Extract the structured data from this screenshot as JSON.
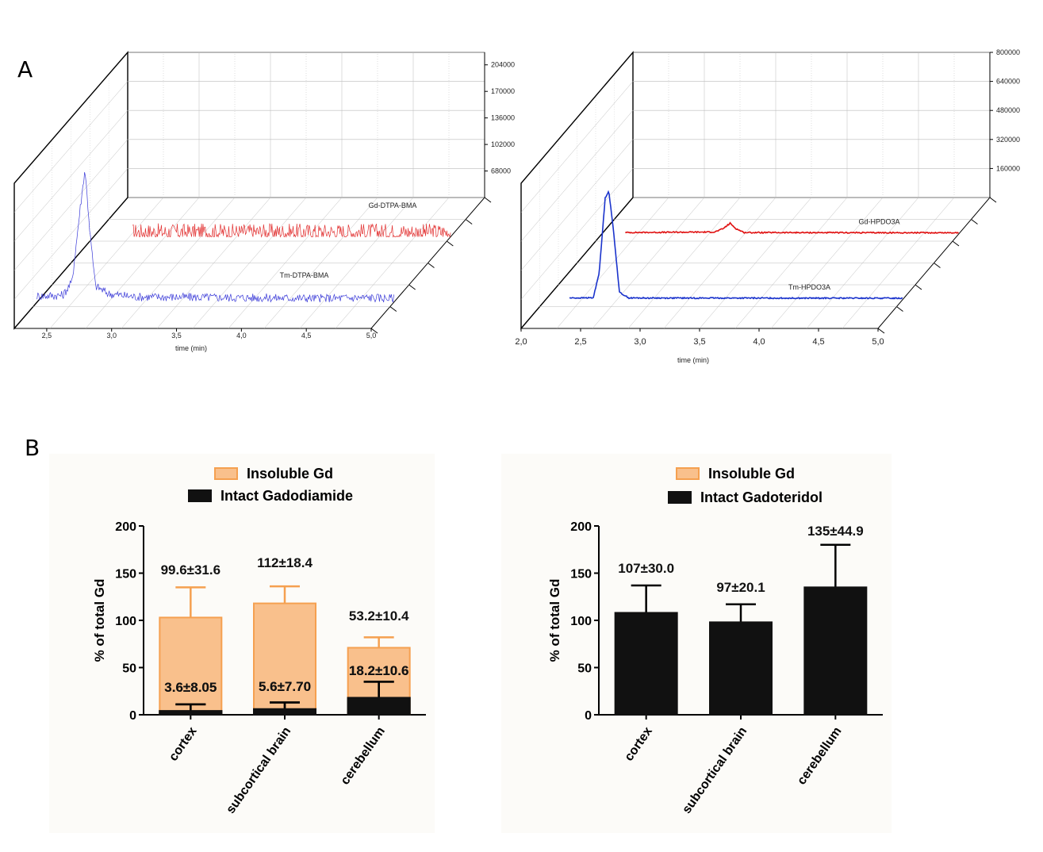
{
  "panels": {
    "a": "A",
    "b": "B"
  },
  "colors": {
    "gd_trace": "#e23030",
    "tm_trace_left": "#3a3ad8",
    "tm_trace_right": "#1a33cc",
    "gd_trace_right": "#e01010",
    "insoluble_fill": "#f9c08c",
    "insoluble_edge": "#f5a050",
    "intact_fill": "#111111",
    "grid": "#bbbbbb",
    "bar_bg": "#fcfbf8"
  },
  "chart_data": [
    {
      "type": "line",
      "panel": "A",
      "xlabel": "time (min)",
      "ylabel": "",
      "xlim": [
        2.25,
        5.0
      ],
      "x_ticks": [
        "2,5",
        "3,0",
        "3,5",
        "4,0",
        "4,5",
        "5,0"
      ],
      "y_ticks": [
        "68000",
        "102000",
        "136000",
        "170000",
        "204000"
      ],
      "ylim": [
        34000,
        220000
      ],
      "series": [
        {
          "name": "Gd-DTPA-BMA",
          "x": [
            2.55,
            5.0
          ],
          "y": [
            40000,
            40000
          ],
          "peak_x": null,
          "peak_y": null,
          "noise": 0.06
        },
        {
          "name": "Tm-DTPA-BMA",
          "x": [
            2.25,
            2.45,
            2.52,
            2.58,
            2.62,
            2.66,
            2.7,
            2.8,
            3.0,
            4.5,
            4.8,
            5.0
          ],
          "y": [
            42000,
            43000,
            60000,
            150000,
            205000,
            120000,
            55000,
            45000,
            41000,
            39000,
            40000,
            39000
          ],
          "noise": 0.03
        }
      ],
      "grid": true,
      "projection": "3d-waterfall"
    },
    {
      "type": "line",
      "panel": "A",
      "xlabel": "time (min)",
      "ylabel": "",
      "xlim": [
        2.0,
        5.0
      ],
      "x_ticks": [
        "2,0",
        "2,5",
        "3,0",
        "3,5",
        "4,0",
        "4,5",
        "5,0"
      ],
      "y_ticks": [
        "160000",
        "320000",
        "480000",
        "640000",
        "800000"
      ],
      "ylim": [
        0,
        800000
      ],
      "series": [
        {
          "name": "Gd-HPDO3A",
          "x": [
            2.2,
            2.95,
            3.02,
            3.08,
            3.13,
            3.2,
            4.5,
            5.0
          ],
          "y": [
            9000,
            12000,
            30000,
            60000,
            30000,
            9000,
            8000,
            8000
          ],
          "noise": 0.004
        },
        {
          "name": "Tm-HPDO3A",
          "x": [
            2.2,
            2.4,
            2.45,
            2.5,
            2.53,
            2.57,
            2.62,
            2.7,
            4.5,
            5.0
          ],
          "y": [
            9000,
            10000,
            150000,
            560000,
            600000,
            380000,
            40000,
            9000,
            8000,
            8000
          ],
          "noise": 0.004
        }
      ],
      "grid": true,
      "projection": "3d-waterfall"
    },
    {
      "type": "bar",
      "panel": "B",
      "categories": [
        "cortex",
        "subcortical brain",
        "cerebellum"
      ],
      "ylabel": "% of total Gd",
      "ylim": [
        0,
        200
      ],
      "y_ticks": [
        "0",
        "50",
        "100",
        "150",
        "200"
      ],
      "series": [
        {
          "name": "Insoluble Gd",
          "values": [
            103,
            118,
            71
          ],
          "error_top": [
            135,
            136,
            82
          ],
          "labels": [
            "99.6±31.6",
            "112±18.4",
            "53.2±10.4"
          ]
        },
        {
          "name": "Intact Gadodiamide",
          "values": [
            4,
            6,
            18
          ],
          "error_top": [
            11,
            13,
            35
          ],
          "labels": [
            "3.6±8.05",
            "5.6±7.70",
            "18.2±10.6"
          ]
        }
      ],
      "legend": "top-center"
    },
    {
      "type": "bar",
      "panel": "B",
      "categories": [
        "cortex",
        "subcortical brain",
        "cerebellum"
      ],
      "ylabel": "% of total Gd",
      "ylim": [
        0,
        200
      ],
      "y_ticks": [
        "0",
        "50",
        "100",
        "150",
        "200"
      ],
      "series": [
        {
          "name": "Insoluble Gd",
          "values": [
            0,
            0,
            0
          ],
          "error_top": [
            0,
            0,
            0
          ],
          "labels": [
            "",
            "",
            ""
          ]
        },
        {
          "name": "Intact Gadoteridol",
          "values": [
            108,
            98,
            135
          ],
          "error_top": [
            137,
            117,
            180
          ],
          "labels": [
            "107±30.0",
            "97±20.1",
            "135±44.9"
          ]
        }
      ],
      "legend": "top-center"
    }
  ]
}
